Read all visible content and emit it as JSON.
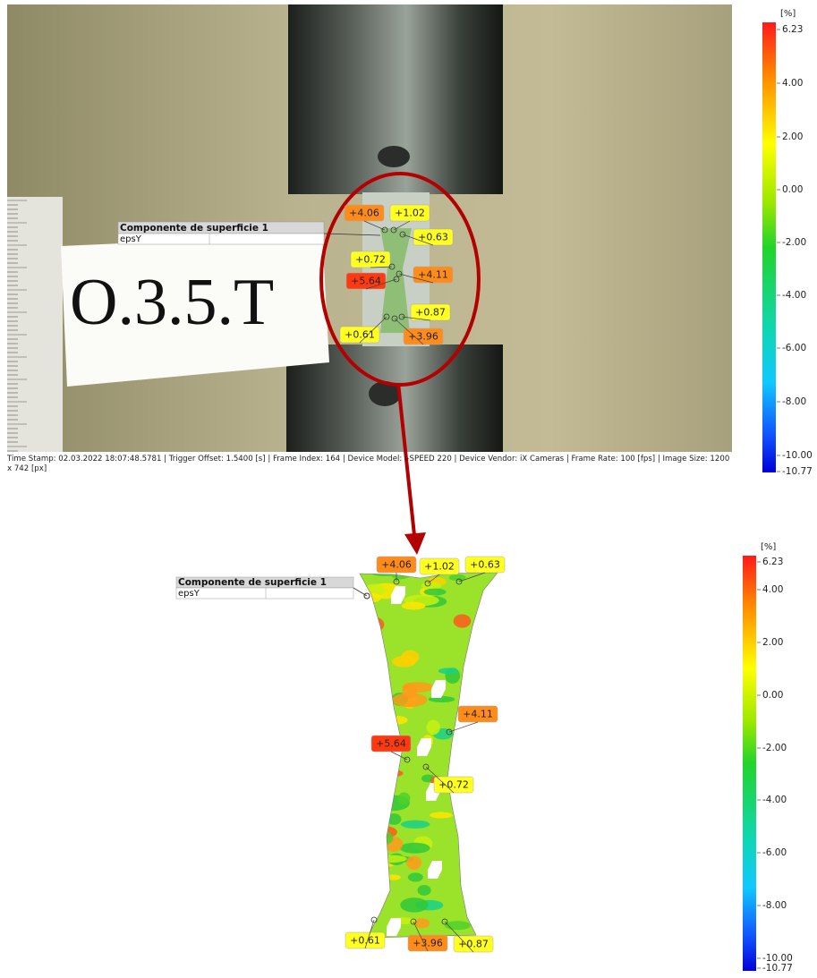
{
  "top_panel": {
    "photo_label": "O.3.5.T",
    "component": {
      "title": "Componente de superficie 1",
      "quantity": "epsY"
    },
    "point_labels": [
      "+4.06",
      "+1.02",
      "+0.63",
      "+0.72",
      "+4.11",
      "+5.64",
      "+0.87",
      "+0.61",
      "+3.96"
    ],
    "footer": "Time Stamp: 02.03.2022 18:07:48.5781 | Trigger Offset: 1.5400 [s] | Frame Index: 164 | Device Model: i-SPEED 220 | Device Vendor: iX Cameras | Frame Rate: 100 [fps] | Image Size: 1200 x 742 [px]",
    "colorbar": {
      "unit": "[%]",
      "ticks": [
        "6.23",
        "4.00",
        "2.00",
        "0.00",
        "-2.00",
        "-4.00",
        "-6.00",
        "-8.00",
        "-10.00",
        "-10.77"
      ]
    }
  },
  "bottom_panel": {
    "component": {
      "title": "Componente de superficie 1",
      "quantity": "epsY"
    },
    "point_labels": [
      "+4.06",
      "+1.02",
      "+0.63",
      "+4.11",
      "+5.64",
      "+0.72",
      "+0.61",
      "+3.96",
      "+0.87"
    ],
    "colorbar": {
      "unit": "[%]",
      "ticks": [
        "6.23",
        "4.00",
        "2.00",
        "0.00",
        "-2.00",
        "-4.00",
        "-6.00",
        "-8.00",
        "-10.00",
        "-10.77"
      ]
    }
  }
}
